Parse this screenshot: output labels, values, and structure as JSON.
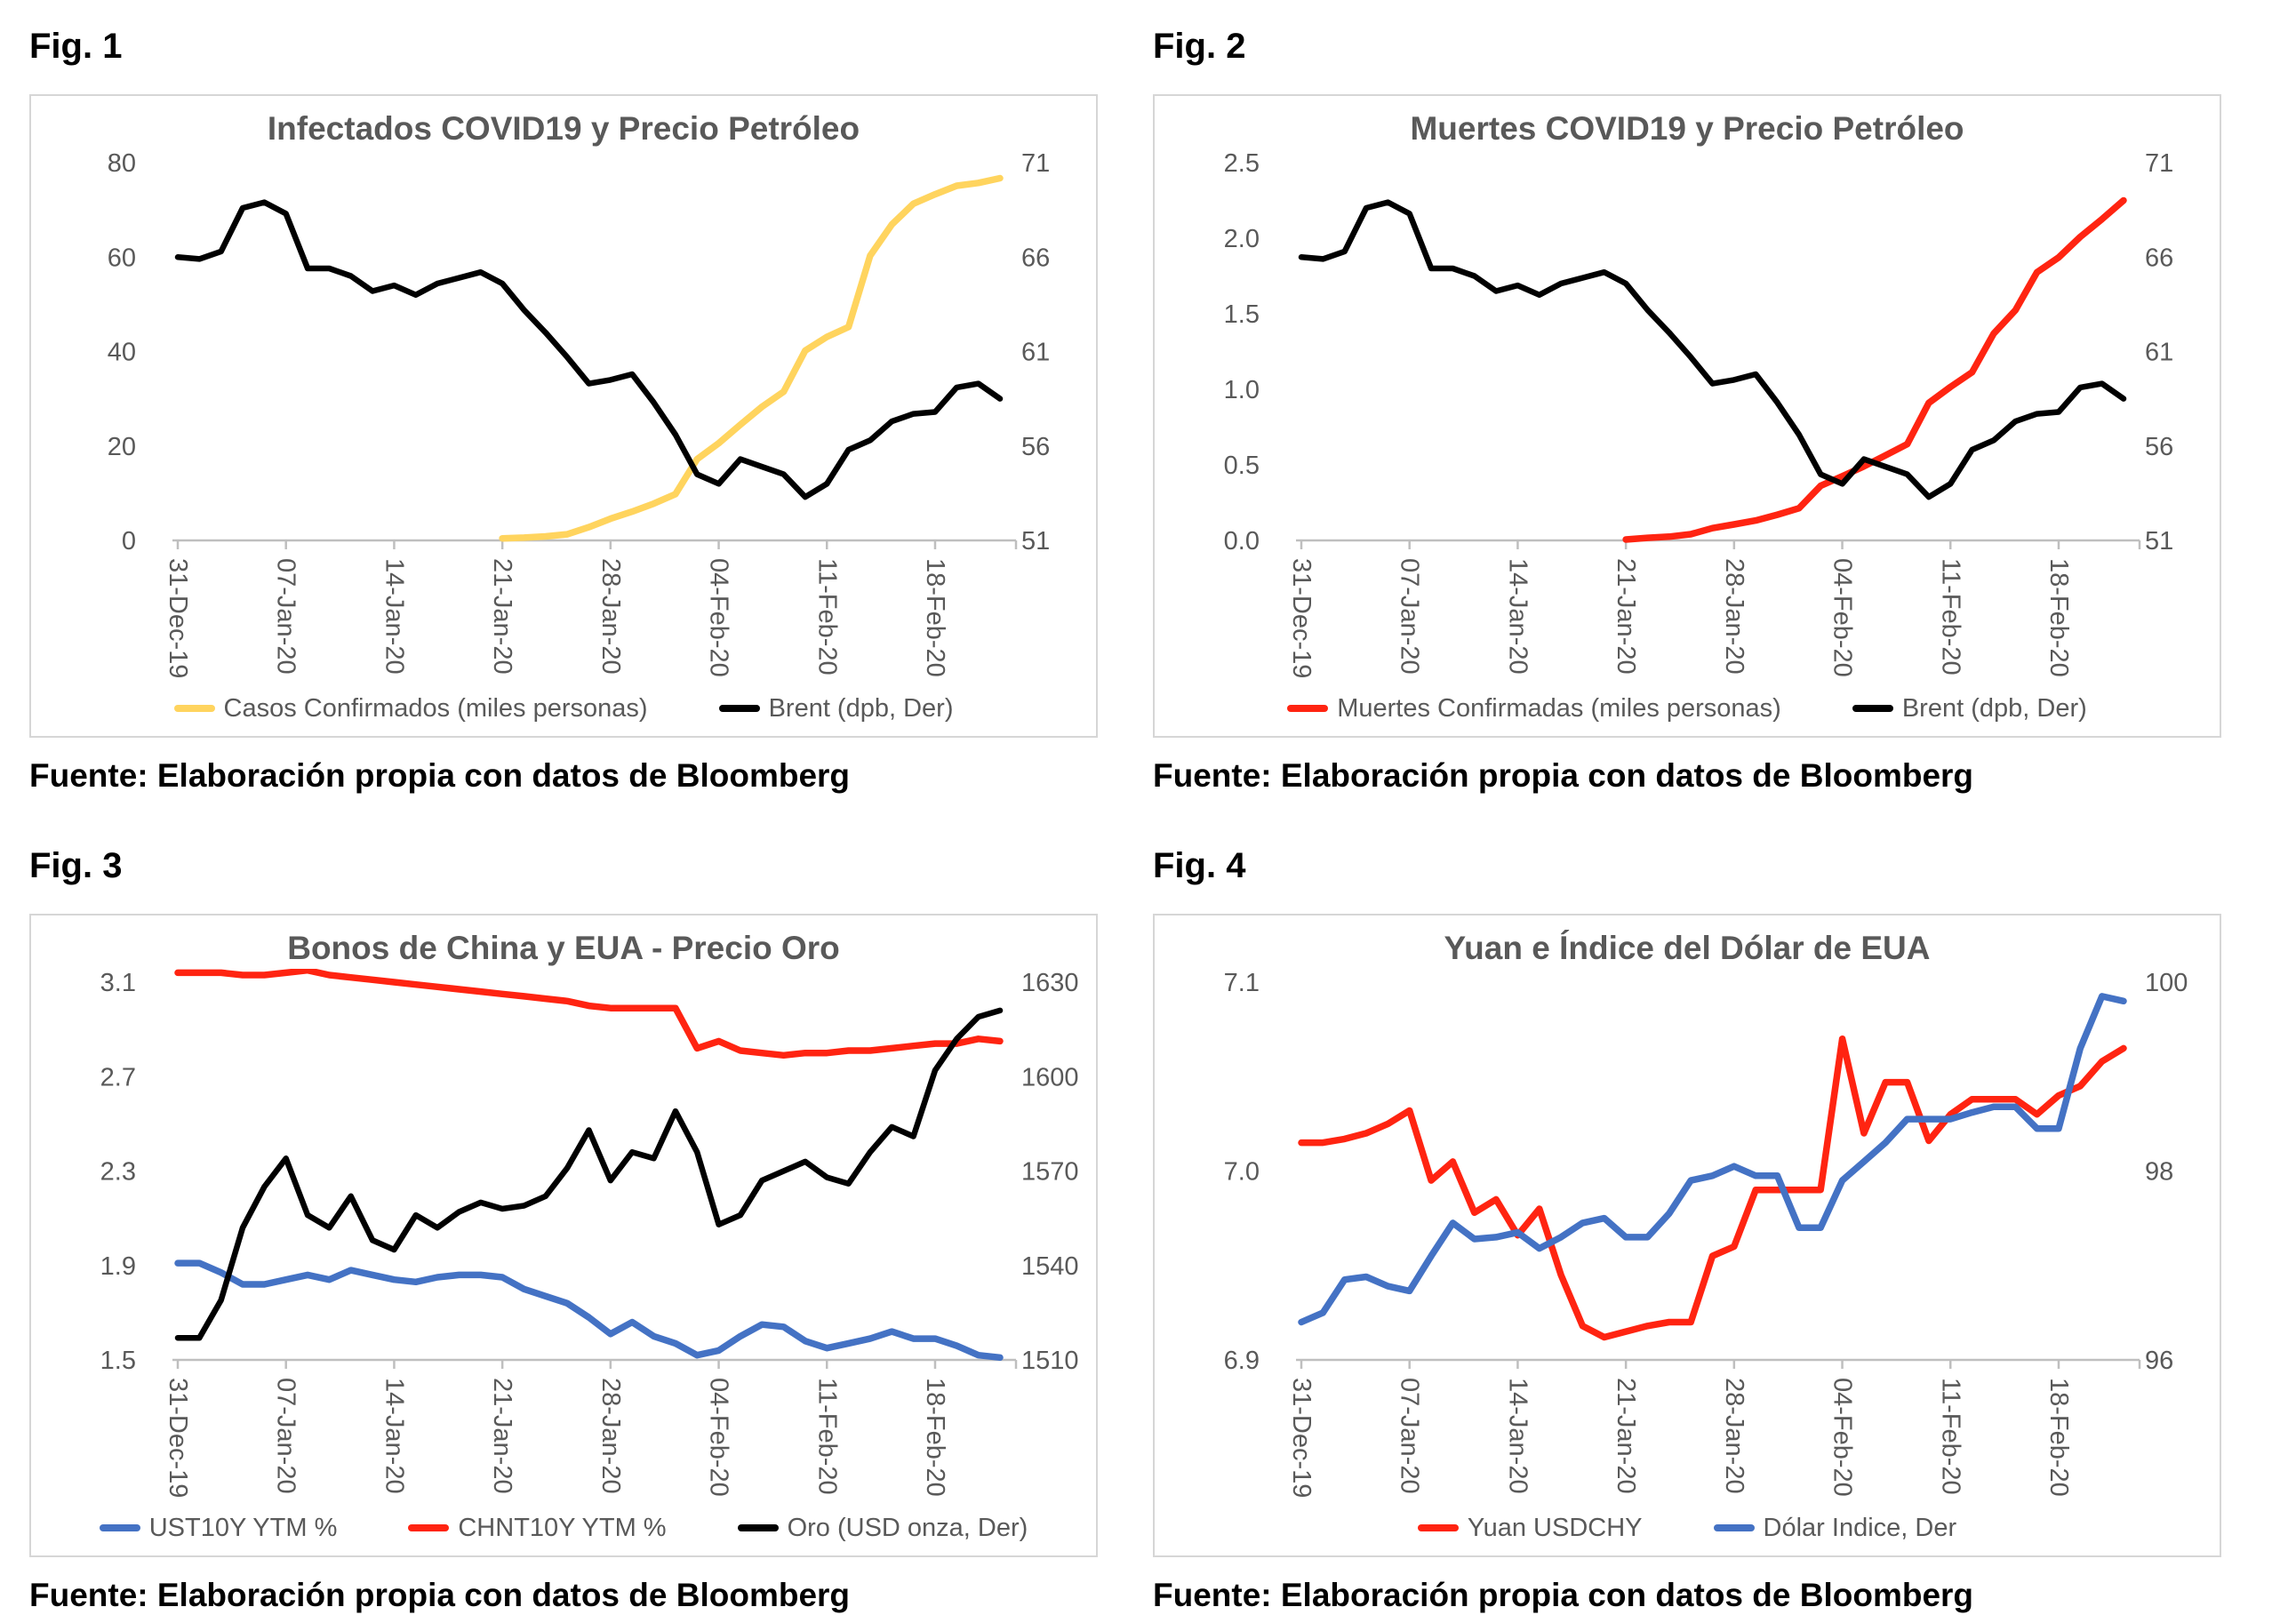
{
  "source_note": "Fuente: Elaboración propia con datos de Bloomberg",
  "chart_data": [
    {
      "type": "line",
      "fig_label": "Fig. 1",
      "title": "Infectados COVID19 y Precio Petróleo",
      "fuente": "Fuente: Elaboración propia con datos de Bloomberg",
      "x": [
        "31-Dec-19",
        "01-Jan-20",
        "02-Jan-20",
        "03-Jan-20",
        "06-Jan-20",
        "07-Jan-20",
        "08-Jan-20",
        "09-Jan-20",
        "10-Jan-20",
        "13-Jan-20",
        "14-Jan-20",
        "15-Jan-20",
        "16-Jan-20",
        "17-Jan-20",
        "20-Jan-20",
        "21-Jan-20",
        "22-Jan-20",
        "23-Jan-20",
        "24-Jan-20",
        "27-Jan-20",
        "28-Jan-20",
        "29-Jan-20",
        "30-Jan-20",
        "31-Jan-20",
        "03-Feb-20",
        "04-Feb-20",
        "05-Feb-20",
        "06-Feb-20",
        "07-Feb-20",
        "10-Feb-20",
        "11-Feb-20",
        "12-Feb-20",
        "13-Feb-20",
        "14-Feb-20",
        "17-Feb-20",
        "18-Feb-20",
        "19-Feb-20",
        "20-Feb-20",
        "21-Feb-20"
      ],
      "x_ticks": [
        "31-Dec-19",
        "07-Jan-20",
        "14-Jan-20",
        "21-Jan-20",
        "28-Jan-20",
        "04-Feb-20",
        "11-Feb-20",
        "18-Feb-20"
      ],
      "x_tick_indices": [
        0,
        5,
        10,
        15,
        20,
        25,
        30,
        35
      ],
      "left_axis": {
        "tick_labels": [
          "0",
          "20",
          "40",
          "60",
          "80"
        ],
        "tick_values": [
          0,
          20,
          40,
          60,
          80
        ],
        "range": [
          0,
          80
        ]
      },
      "right_axis": {
        "tick_labels": [
          "51",
          "56",
          "61",
          "66",
          "71"
        ],
        "tick_values": [
          51,
          56,
          61,
          66,
          71
        ],
        "range": [
          51,
          71
        ]
      },
      "series": [
        {
          "name": "Casos Confirmados (miles personas)",
          "color": "#FFD45E",
          "axis": "left",
          "values": [
            null,
            null,
            null,
            null,
            null,
            null,
            null,
            null,
            null,
            null,
            null,
            null,
            null,
            null,
            null,
            0.44,
            0.58,
            0.85,
            1.3,
            2.8,
            4.6,
            6.1,
            7.8,
            9.8,
            17.2,
            20.6,
            24.5,
            28.3,
            31.5,
            40.2,
            43.1,
            45.2,
            60.3,
            66.9,
            71.3,
            73.3,
            75.1,
            75.7,
            76.7
          ]
        },
        {
          "name": "Brent (dpb, Der)",
          "color": "#000000",
          "axis": "right",
          "values": [
            66.0,
            65.9,
            66.3,
            68.6,
            68.9,
            68.3,
            65.4,
            65.4,
            65.0,
            64.2,
            64.5,
            64.0,
            64.6,
            64.9,
            65.2,
            64.6,
            63.2,
            62.0,
            60.7,
            59.3,
            59.5,
            59.8,
            58.3,
            56.6,
            54.5,
            54.0,
            55.3,
            54.9,
            54.5,
            53.3,
            54.0,
            55.8,
            56.3,
            57.3,
            57.7,
            57.8,
            59.1,
            59.3,
            58.5
          ]
        }
      ]
    },
    {
      "type": "line",
      "fig_label": "Fig. 2",
      "title": "Muertes COVID19 y Precio Petróleo",
      "fuente": "Fuente: Elaboración propia con datos de Bloomberg",
      "x": [
        "31-Dec-19",
        "01-Jan-20",
        "02-Jan-20",
        "03-Jan-20",
        "06-Jan-20",
        "07-Jan-20",
        "08-Jan-20",
        "09-Jan-20",
        "10-Jan-20",
        "13-Jan-20",
        "14-Jan-20",
        "15-Jan-20",
        "16-Jan-20",
        "17-Jan-20",
        "20-Jan-20",
        "21-Jan-20",
        "22-Jan-20",
        "23-Jan-20",
        "24-Jan-20",
        "27-Jan-20",
        "28-Jan-20",
        "29-Jan-20",
        "30-Jan-20",
        "31-Jan-20",
        "03-Feb-20",
        "04-Feb-20",
        "05-Feb-20",
        "06-Feb-20",
        "07-Feb-20",
        "10-Feb-20",
        "11-Feb-20",
        "12-Feb-20",
        "13-Feb-20",
        "14-Feb-20",
        "17-Feb-20",
        "18-Feb-20",
        "19-Feb-20",
        "20-Feb-20",
        "21-Feb-20"
      ],
      "x_ticks": [
        "31-Dec-19",
        "07-Jan-20",
        "14-Jan-20",
        "21-Jan-20",
        "28-Jan-20",
        "04-Feb-20",
        "11-Feb-20",
        "18-Feb-20"
      ],
      "x_tick_indices": [
        0,
        5,
        10,
        15,
        20,
        25,
        30,
        35
      ],
      "left_axis": {
        "tick_labels": [
          "0.0",
          "0.5",
          "1.0",
          "1.5",
          "2.0",
          "2.5"
        ],
        "tick_values": [
          0,
          0.5,
          1,
          1.5,
          2,
          2.5
        ],
        "range": [
          0,
          2.5
        ]
      },
      "right_axis": {
        "tick_labels": [
          "51",
          "56",
          "61",
          "66",
          "71"
        ],
        "tick_values": [
          51,
          56,
          61,
          66,
          71
        ],
        "range": [
          51,
          71
        ]
      },
      "series": [
        {
          "name": "Muertes Confirmadas (miles personas)",
          "color": "#FF2411",
          "axis": "left",
          "values": [
            null,
            null,
            null,
            null,
            null,
            null,
            null,
            null,
            null,
            null,
            null,
            null,
            null,
            null,
            null,
            0.006,
            0.017,
            0.025,
            0.041,
            0.081,
            0.106,
            0.132,
            0.17,
            0.213,
            0.361,
            0.425,
            0.49,
            0.563,
            0.637,
            0.91,
            1.016,
            1.113,
            1.369,
            1.523,
            1.775,
            1.873,
            2.009,
            2.126,
            2.25
          ]
        },
        {
          "name": "Brent (dpb, Der)",
          "color": "#000000",
          "axis": "right",
          "values": [
            66.0,
            65.9,
            66.3,
            68.6,
            68.9,
            68.3,
            65.4,
            65.4,
            65.0,
            64.2,
            64.5,
            64.0,
            64.6,
            64.9,
            65.2,
            64.6,
            63.2,
            62.0,
            60.7,
            59.3,
            59.5,
            59.8,
            58.3,
            56.6,
            54.5,
            54.0,
            55.3,
            54.9,
            54.5,
            53.3,
            54.0,
            55.8,
            56.3,
            57.3,
            57.7,
            57.8,
            59.1,
            59.3,
            58.5
          ]
        }
      ]
    },
    {
      "type": "line",
      "fig_label": "Fig. 3",
      "title": "Bonos de China y EUA - Precio Oro",
      "fuente": "Fuente: Elaboración propia con datos de Bloomberg",
      "x": [
        "31-Dec-19",
        "01-Jan-20",
        "02-Jan-20",
        "03-Jan-20",
        "06-Jan-20",
        "07-Jan-20",
        "08-Jan-20",
        "09-Jan-20",
        "10-Jan-20",
        "13-Jan-20",
        "14-Jan-20",
        "15-Jan-20",
        "16-Jan-20",
        "17-Jan-20",
        "20-Jan-20",
        "21-Jan-20",
        "22-Jan-20",
        "23-Jan-20",
        "24-Jan-20",
        "27-Jan-20",
        "28-Jan-20",
        "29-Jan-20",
        "30-Jan-20",
        "31-Jan-20",
        "03-Feb-20",
        "04-Feb-20",
        "05-Feb-20",
        "06-Feb-20",
        "07-Feb-20",
        "10-Feb-20",
        "11-Feb-20",
        "12-Feb-20",
        "13-Feb-20",
        "14-Feb-20",
        "17-Feb-20",
        "18-Feb-20",
        "19-Feb-20",
        "20-Feb-20",
        "21-Feb-20"
      ],
      "x_ticks": [
        "31-Dec-19",
        "07-Jan-20",
        "14-Jan-20",
        "21-Jan-20",
        "28-Jan-20",
        "04-Feb-20",
        "11-Feb-20",
        "18-Feb-20"
      ],
      "x_tick_indices": [
        0,
        5,
        10,
        15,
        20,
        25,
        30,
        35
      ],
      "left_axis": {
        "tick_labels": [
          "1.5",
          "1.9",
          "2.3",
          "2.7",
          "3.1"
        ],
        "tick_values": [
          1.5,
          1.9,
          2.3,
          2.7,
          3.1
        ],
        "range": [
          1.5,
          3.1
        ]
      },
      "right_axis": {
        "tick_labels": [
          "1510",
          "1540",
          "1570",
          "1600",
          "1630"
        ],
        "tick_values": [
          1510,
          1540,
          1570,
          1600,
          1630
        ],
        "range": [
          1510,
          1630
        ]
      },
      "series": [
        {
          "name": "UST10Y YTM %",
          "color": "#4472C4",
          "axis": "left",
          "values": [
            1.91,
            1.91,
            1.87,
            1.82,
            1.82,
            1.84,
            1.86,
            1.84,
            1.88,
            1.86,
            1.84,
            1.83,
            1.85,
            1.86,
            1.86,
            1.85,
            1.8,
            1.77,
            1.74,
            1.68,
            1.61,
            1.66,
            1.6,
            1.57,
            1.52,
            1.54,
            1.6,
            1.65,
            1.64,
            1.58,
            1.55,
            1.57,
            1.59,
            1.62,
            1.59,
            1.59,
            1.56,
            1.52,
            1.51
          ]
        },
        {
          "name": "CHNT10Y YTM %",
          "color": "#FF2411",
          "axis": "left",
          "values": [
            3.14,
            3.14,
            3.14,
            3.13,
            3.13,
            3.14,
            3.15,
            3.13,
            3.12,
            3.11,
            3.1,
            3.09,
            3.08,
            3.07,
            3.06,
            3.05,
            3.04,
            3.03,
            3.02,
            3.0,
            2.99,
            2.99,
            2.99,
            2.99,
            2.82,
            2.85,
            2.81,
            2.8,
            2.79,
            2.8,
            2.8,
            2.81,
            2.81,
            2.82,
            2.83,
            2.84,
            2.84,
            2.86,
            2.85
          ]
        },
        {
          "name": "Oro (USD onza, Der)",
          "color": "#000000",
          "axis": "right",
          "values": [
            1517,
            1517,
            1529,
            1552,
            1565,
            1574,
            1556,
            1552,
            1562,
            1548,
            1545,
            1556,
            1552,
            1557,
            1560,
            1558,
            1559,
            1562,
            1571,
            1583,
            1567,
            1576,
            1574,
            1589,
            1576,
            1553,
            1556,
            1567,
            1570,
            1573,
            1568,
            1566,
            1576,
            1584,
            1581,
            1602,
            1612,
            1619,
            1621
          ]
        }
      ]
    },
    {
      "type": "line",
      "fig_label": "Fig. 4",
      "title": "Yuan e Índice del Dólar de EUA",
      "fuente": "Fuente: Elaboración propia con datos de Bloomberg",
      "x": [
        "31-Dec-19",
        "01-Jan-20",
        "02-Jan-20",
        "03-Jan-20",
        "06-Jan-20",
        "07-Jan-20",
        "08-Jan-20",
        "09-Jan-20",
        "10-Jan-20",
        "13-Jan-20",
        "14-Jan-20",
        "15-Jan-20",
        "16-Jan-20",
        "17-Jan-20",
        "20-Jan-20",
        "21-Jan-20",
        "22-Jan-20",
        "23-Jan-20",
        "24-Jan-20",
        "27-Jan-20",
        "28-Jan-20",
        "29-Jan-20",
        "30-Jan-20",
        "31-Jan-20",
        "03-Feb-20",
        "04-Feb-20",
        "05-Feb-20",
        "06-Feb-20",
        "07-Feb-20",
        "10-Feb-20",
        "11-Feb-20",
        "12-Feb-20",
        "13-Feb-20",
        "14-Feb-20",
        "17-Feb-20",
        "18-Feb-20",
        "19-Feb-20",
        "20-Feb-20",
        "21-Feb-20"
      ],
      "x_ticks": [
        "31-Dec-19",
        "07-Jan-20",
        "14-Jan-20",
        "21-Jan-20",
        "28-Jan-20",
        "04-Feb-20",
        "11-Feb-20",
        "18-Feb-20"
      ],
      "x_tick_indices": [
        0,
        5,
        10,
        15,
        20,
        25,
        30,
        35
      ],
      "left_axis": {
        "tick_labels": [
          "6.9",
          "7.0",
          "7.1"
        ],
        "tick_values": [
          6.9,
          7.0,
          7.1
        ],
        "range": [
          6.9,
          7.1
        ]
      },
      "right_axis": {
        "tick_labels": [
          "96",
          "98",
          "100"
        ],
        "tick_values": [
          96,
          98,
          100
        ],
        "range": [
          96,
          100
        ]
      },
      "series": [
        {
          "name": "Yuan USDCHY",
          "color": "#FF2411",
          "axis": "left",
          "values": [
            7.015,
            7.015,
            7.017,
            7.02,
            7.025,
            7.032,
            6.995,
            7.005,
            6.978,
            6.985,
            6.966,
            6.98,
            6.945,
            6.918,
            6.912,
            6.915,
            6.918,
            6.92,
            6.92,
            6.955,
            6.96,
            6.99,
            6.99,
            6.99,
            6.99,
            7.07,
            7.02,
            7.047,
            7.047,
            7.016,
            7.03,
            7.038,
            7.038,
            7.038,
            7.03,
            7.04,
            7.045,
            7.058,
            7.065
          ]
        },
        {
          "name": "Dólar Indice, Der",
          "color": "#4472C4",
          "axis": "right",
          "values": [
            96.4,
            96.5,
            96.85,
            96.88,
            96.78,
            96.73,
            97.1,
            97.45,
            97.28,
            97.3,
            97.35,
            97.18,
            97.3,
            97.45,
            97.5,
            97.3,
            97.3,
            97.55,
            97.9,
            97.95,
            98.05,
            97.95,
            97.95,
            97.4,
            97.4,
            97.9,
            98.1,
            98.3,
            98.55,
            98.55,
            98.55,
            98.62,
            98.68,
            98.68,
            98.45,
            98.45,
            99.3,
            99.85,
            99.8
          ]
        }
      ]
    }
  ]
}
